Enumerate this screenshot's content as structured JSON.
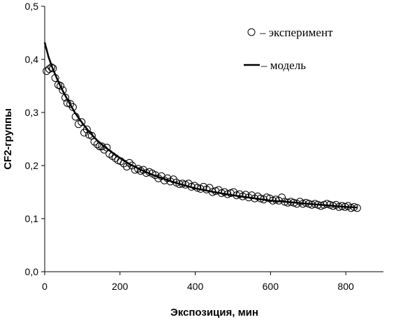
{
  "chart_data": {
    "type": "scatter",
    "title": "",
    "xlabel": "Экспозиция, мин",
    "ylabel": "CF2-группы",
    "xlim": [
      0,
      900
    ],
    "ylim": [
      0,
      0.5
    ],
    "x_ticks": [
      0,
      200,
      400,
      600,
      800
    ],
    "x_tick_labels": [
      "0",
      "200",
      "400",
      "600",
      "800"
    ],
    "y_ticks": [
      0,
      0.1,
      0.2,
      0.3,
      0.4,
      0.5
    ],
    "y_tick_labels": [
      "0,0",
      "0,1",
      "0,2",
      "0,3",
      "0,4",
      "0,5"
    ],
    "grid": false,
    "legend_placement": "top-right",
    "series": [
      {
        "name": "– эксперимент",
        "kind": "scatter",
        "marker": "open-circle",
        "color": "#000000",
        "x": [
          5,
          12,
          18,
          22,
          28,
          36,
          42,
          48,
          55,
          60,
          68,
          75,
          82,
          90,
          98,
          105,
          112,
          118,
          125,
          132,
          140,
          146,
          152,
          158,
          165,
          172,
          180,
          188,
          195,
          202,
          210,
          218,
          225,
          232,
          240,
          248,
          255,
          262,
          270,
          278,
          286,
          294,
          302,
          310,
          318,
          326,
          334,
          342,
          350,
          358,
          366,
          374,
          382,
          390,
          398,
          406,
          414,
          422,
          430,
          438,
          446,
          454,
          462,
          470,
          478,
          486,
          494,
          502,
          510,
          518,
          526,
          534,
          542,
          550,
          558,
          566,
          574,
          582,
          590,
          598,
          606,
          614,
          622,
          630,
          638,
          646,
          654,
          662,
          670,
          678,
          686,
          694,
          702,
          710,
          718,
          726,
          734,
          742,
          750,
          758,
          766,
          774,
          782,
          790,
          798,
          806,
          814,
          822,
          830
        ],
        "y": [
          0.378,
          0.382,
          0.385,
          0.383,
          0.365,
          0.352,
          0.35,
          0.342,
          0.328,
          0.318,
          0.316,
          0.31,
          0.292,
          0.278,
          0.282,
          0.262,
          0.268,
          0.258,
          0.256,
          0.245,
          0.24,
          0.236,
          0.236,
          0.23,
          0.234,
          0.222,
          0.218,
          0.214,
          0.21,
          0.208,
          0.204,
          0.198,
          0.205,
          0.2,
          0.192,
          0.194,
          0.19,
          0.192,
          0.186,
          0.188,
          0.185,
          0.182,
          0.176,
          0.18,
          0.172,
          0.176,
          0.17,
          0.174,
          0.168,
          0.165,
          0.166,
          0.164,
          0.166,
          0.16,
          0.162,
          0.158,
          0.156,
          0.16,
          0.155,
          0.158,
          0.15,
          0.152,
          0.154,
          0.148,
          0.15,
          0.146,
          0.148,
          0.15,
          0.144,
          0.146,
          0.142,
          0.145,
          0.14,
          0.144,
          0.138,
          0.142,
          0.138,
          0.136,
          0.14,
          0.138,
          0.134,
          0.136,
          0.134,
          0.14,
          0.132,
          0.13,
          0.132,
          0.13,
          0.128,
          0.132,
          0.128,
          0.13,
          0.128,
          0.126,
          0.128,
          0.126,
          0.124,
          0.126,
          0.128,
          0.126,
          0.124,
          0.126,
          0.122,
          0.124,
          0.122,
          0.124,
          0.12,
          0.122,
          0.12
        ]
      },
      {
        "name": "– модель",
        "kind": "line",
        "color": "#000000",
        "x": [
          0,
          10,
          20,
          30,
          40,
          50,
          60,
          80,
          100,
          120,
          140,
          160,
          180,
          200,
          225,
          250,
          275,
          300,
          350,
          400,
          450,
          500,
          550,
          600,
          650,
          700,
          750,
          800,
          830
        ],
        "y": [
          0.432,
          0.405,
          0.385,
          0.368,
          0.352,
          0.338,
          0.325,
          0.3,
          0.28,
          0.262,
          0.247,
          0.235,
          0.224,
          0.214,
          0.203,
          0.194,
          0.186,
          0.179,
          0.167,
          0.157,
          0.15,
          0.144,
          0.139,
          0.134,
          0.131,
          0.128,
          0.125,
          0.122,
          0.121
        ]
      }
    ]
  }
}
